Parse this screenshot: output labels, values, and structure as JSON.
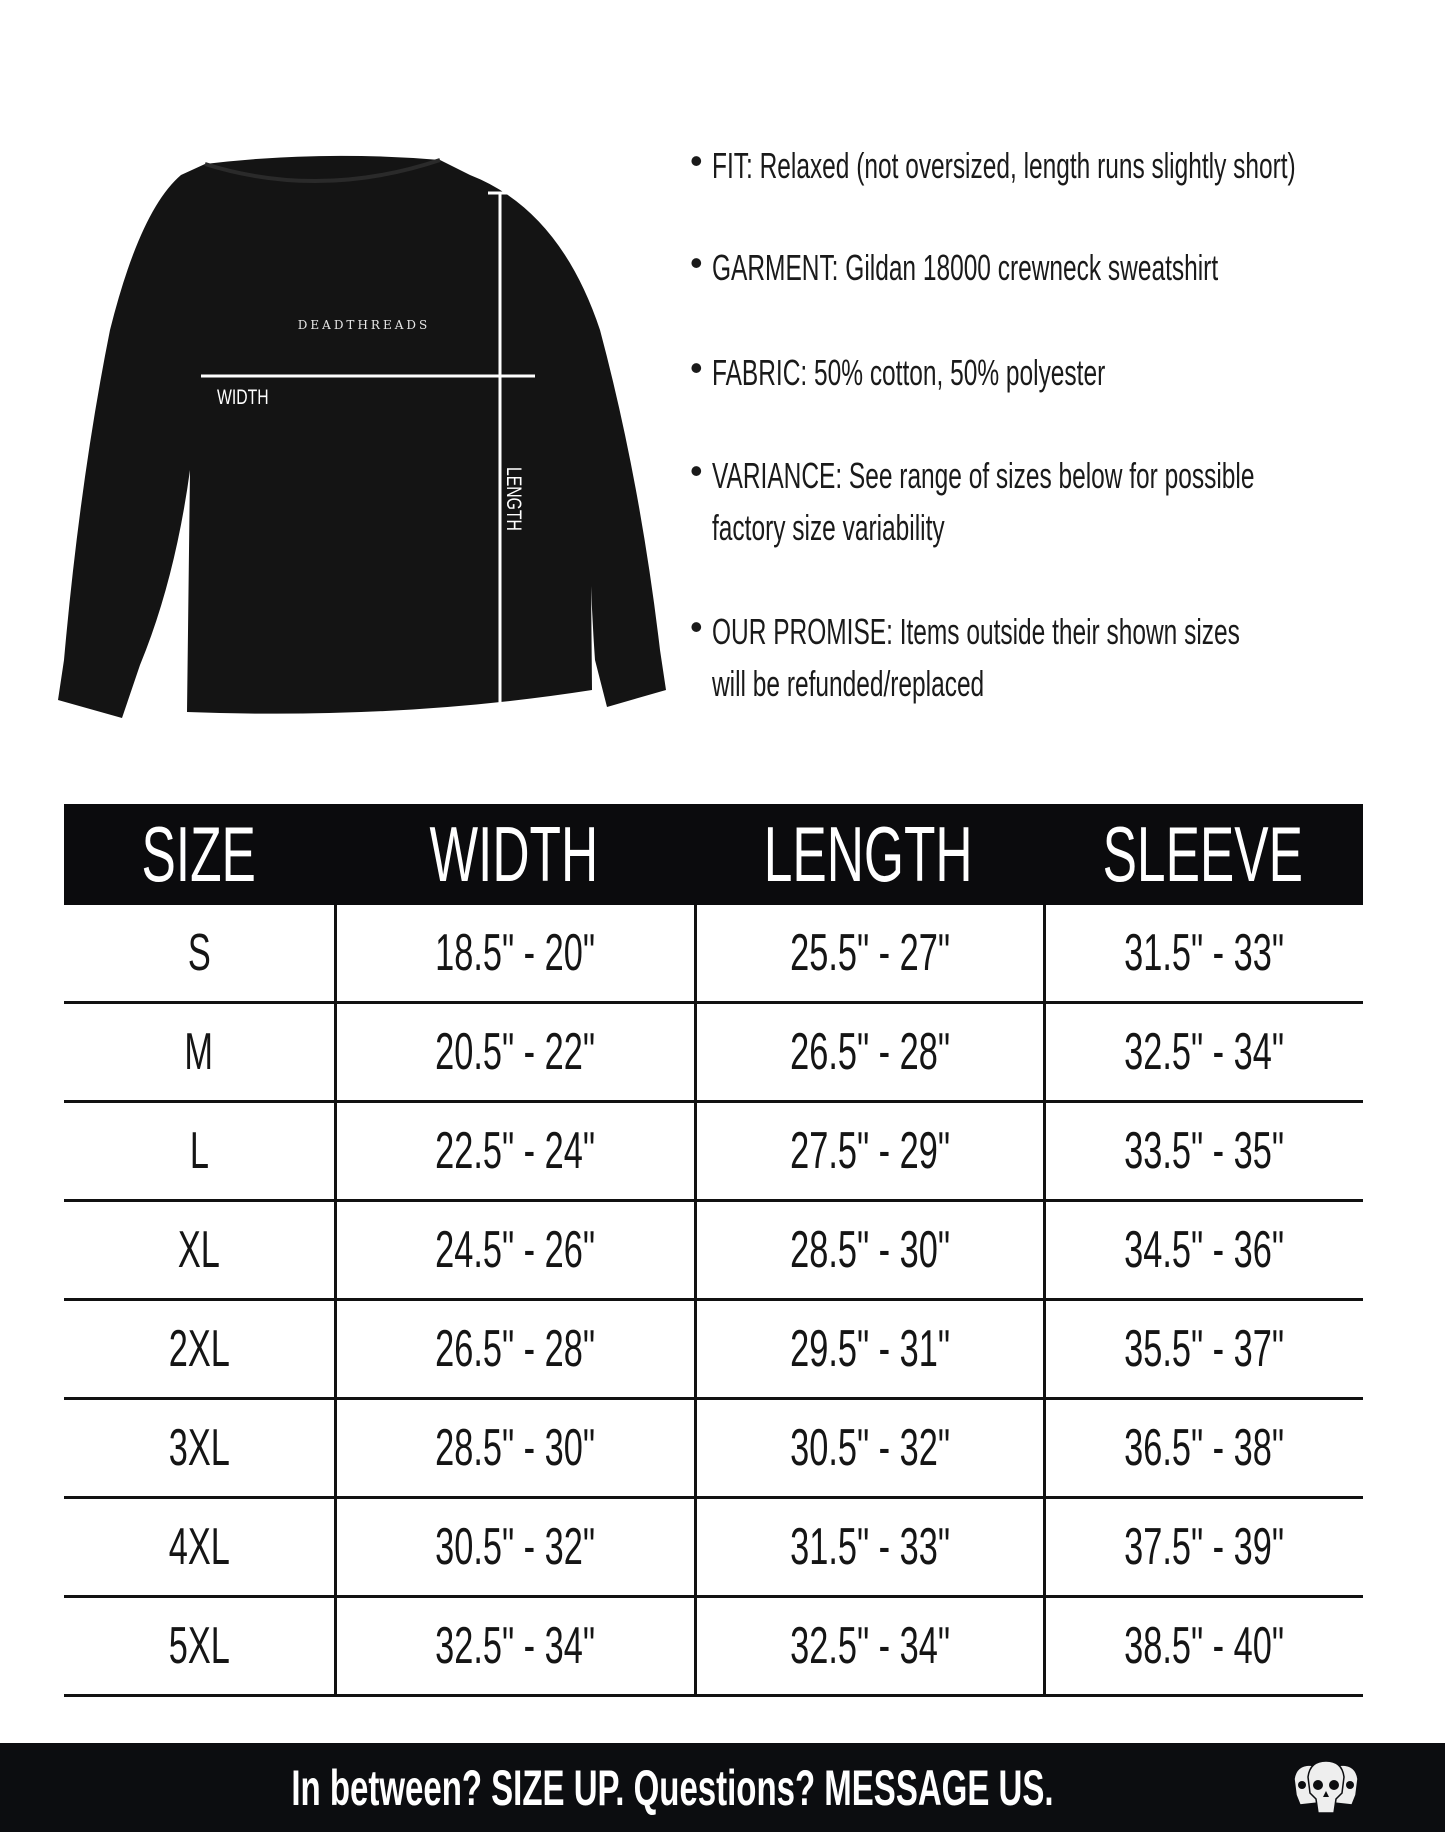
{
  "garment_image": {
    "brand_print": "DEADTHREADS",
    "width_label": "WIDTH",
    "length_label": "LENGTH"
  },
  "details": [
    {
      "lines": [
        "FIT: Relaxed (not oversized, length runs slightly short)"
      ]
    },
    {
      "lines": [
        "GARMENT: Gildan 18000 crewneck sweatshirt"
      ]
    },
    {
      "lines": [
        "FABRIC: 50% cotton, 50% polyester"
      ]
    },
    {
      "lines": [
        "VARIANCE: See range of sizes below for possible",
        "factory size variability"
      ]
    },
    {
      "lines": [
        "OUR PROMISE: Items outside their shown sizes",
        "will be refunded/replaced"
      ]
    }
  ],
  "bullet_char": "•",
  "size_table": {
    "headers": [
      "SIZE",
      "WIDTH",
      "LENGTH",
      "SLEEVE"
    ],
    "rows": [
      [
        "S",
        "18.5\" - 20\"",
        "25.5\" - 27\"",
        "31.5\" - 33\""
      ],
      [
        "M",
        "20.5\" - 22\"",
        "26.5\" - 28\"",
        "32.5\" - 34\""
      ],
      [
        "L",
        "22.5\" - 24\"",
        "27.5\" - 29\"",
        "33.5\" - 35\""
      ],
      [
        "XL",
        "24.5\" - 26\"",
        "28.5\" - 30\"",
        "34.5\" - 36\""
      ],
      [
        "2XL",
        "26.5\" - 28\"",
        "29.5\" - 31\"",
        "35.5\" - 37\""
      ],
      [
        "3XL",
        "28.5\" - 30\"",
        "30.5\" - 32\"",
        "36.5\" - 38\""
      ],
      [
        "4XL",
        "30.5\" - 32\"",
        "31.5\" - 33\"",
        "37.5\" - 39\""
      ],
      [
        "5XL",
        "32.5\" - 34\"",
        "32.5\" - 34\"",
        "38.5\" - 40\""
      ]
    ]
  },
  "footer": {
    "text": "In between? SIZE UP. Questions? MESSAGE US.",
    "logo_icon": "three-skulls-logo"
  },
  "colors": {
    "header_bg": "#0b0b0d",
    "footer_bg": "#0c0d10",
    "shirt": "#141414"
  }
}
